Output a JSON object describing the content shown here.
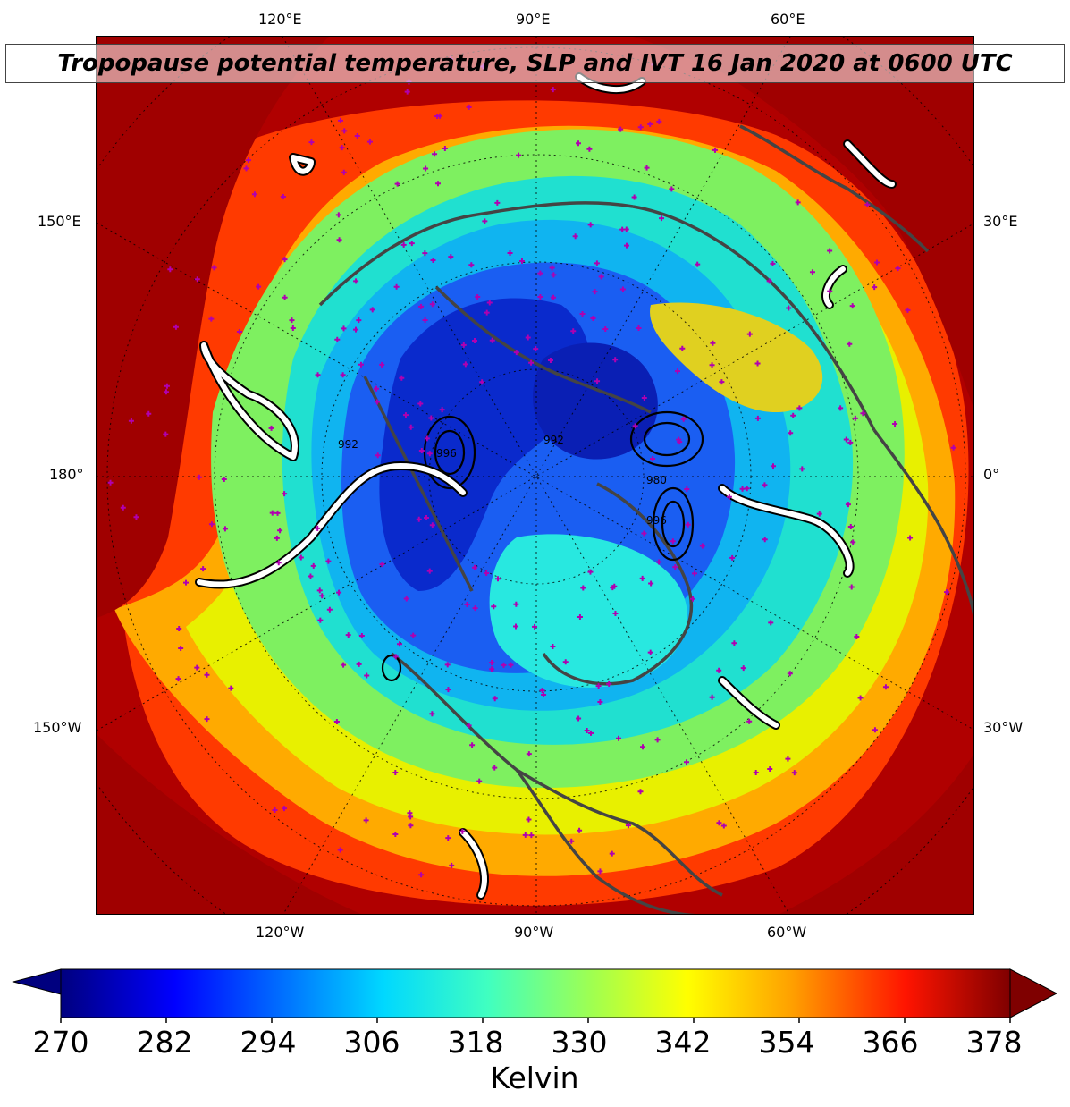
{
  "title": "Tropopause potential temperature, SLP and IVT 16 Jan 2020 at 0600 UTC",
  "longitude_labels": {
    "top": [
      "120°E",
      "90°E",
      "60°E"
    ],
    "bottom": [
      "120°W",
      "90°W",
      "60°W"
    ],
    "left": [
      "150°E",
      "180°",
      "150°W"
    ],
    "right": [
      "30°E",
      "0°",
      "30°W"
    ]
  },
  "colorbar": {
    "label": "Kelvin",
    "min": 270,
    "max": 378,
    "ticks": [
      "270",
      "282",
      "294",
      "306",
      "318",
      "330",
      "342",
      "354",
      "366",
      "378"
    ],
    "colormap": "jet",
    "extend": "both",
    "colors": [
      "#00007f",
      "#0000ff",
      "#007fff",
      "#00ffff",
      "#7fff7f",
      "#ffff00",
      "#ff7f00",
      "#ff0000",
      "#7f0000"
    ]
  },
  "map": {
    "projection": "north-polar-stereographic",
    "center": "north-pole",
    "field": "tropopause-potential-temperature",
    "overlays": [
      "sea-level-pressure-contours",
      "ivt-contours",
      "coastlines",
      "station-markers"
    ],
    "ivt_contour_color": "#ffffff",
    "coastline_color": "#444444",
    "marker_color": "#b000b0",
    "slp_labels": [
      "992",
      "996",
      "992",
      "980",
      "996"
    ]
  }
}
